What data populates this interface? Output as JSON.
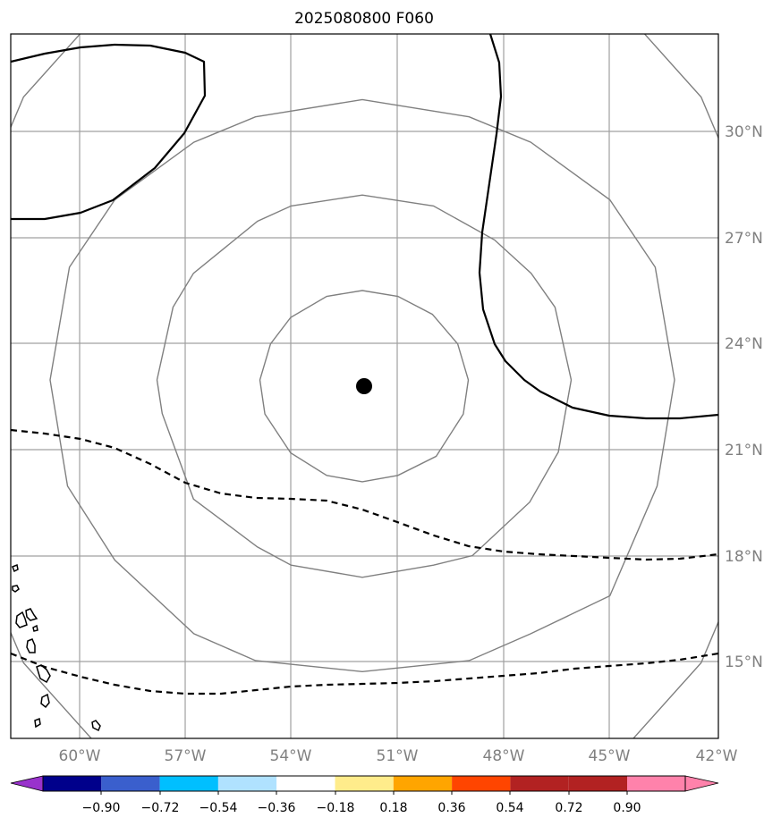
{
  "title": "2025080800 F060",
  "map": {
    "lon_range": [
      -62,
      -42
    ],
    "lat_range": [
      12.8,
      32.8
    ],
    "gridline_color": "#a0a0a0",
    "range_ring_color": "#808080",
    "longitude_labels": [
      "60°W",
      "57°W",
      "54°W",
      "51°W",
      "48°W",
      "45°W",
      "42°W"
    ],
    "latitude_labels": [
      "30°N",
      "27°N",
      "24°N",
      "21°N",
      "18°N",
      "15°N"
    ],
    "center_marker": {
      "lon": -52.0,
      "lat": 22.8,
      "color": "#000000"
    }
  },
  "colorbar": {
    "tick_labels": [
      "−0.90",
      "−0.72",
      "−0.54",
      "−0.36",
      "−0.18",
      "0.18",
      "0.36",
      "0.54",
      "0.72",
      "0.90"
    ],
    "colors": [
      "#9932cc",
      "#00008b",
      "#3a5fcd",
      "#00bfff",
      "#b0e2ff",
      "#ffffff",
      "#ffec8b",
      "#ffa500",
      "#ff4500",
      "#b22222",
      "#ff82ab"
    ]
  }
}
